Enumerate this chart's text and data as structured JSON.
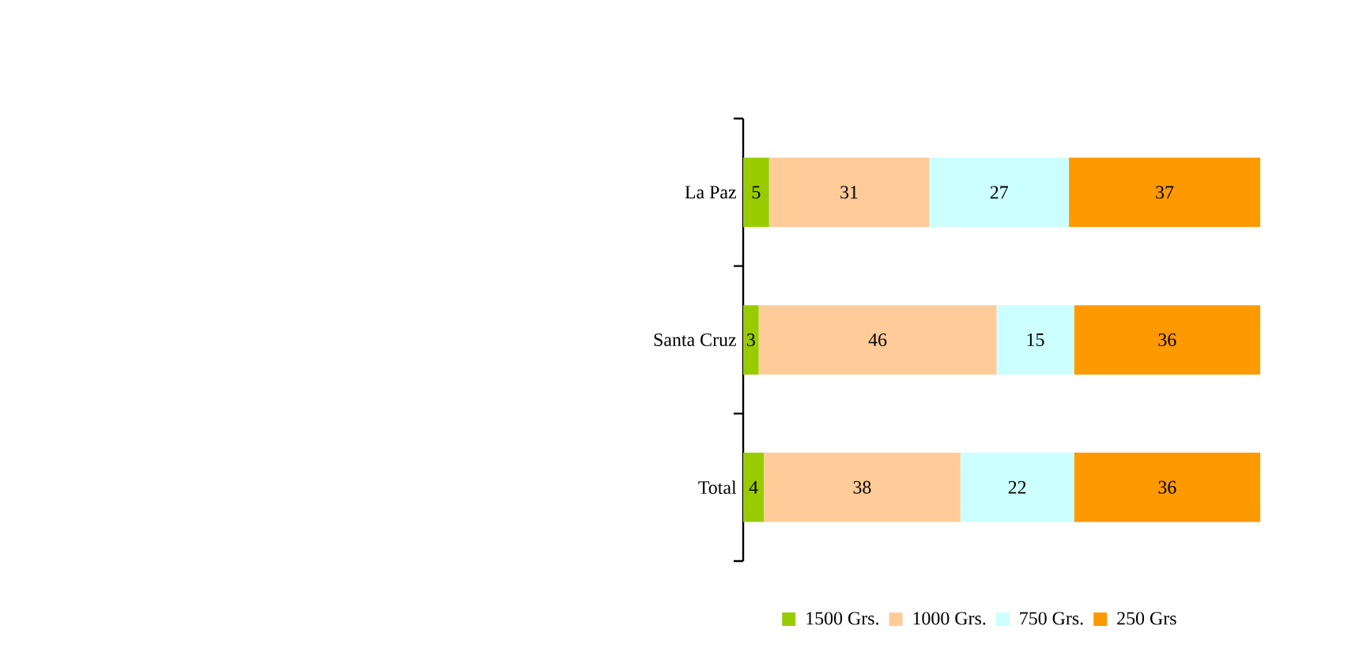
{
  "chart_data": {
    "type": "bar",
    "orientation": "horizontal",
    "stacked": true,
    "data_labels": true,
    "legend": "bottom",
    "tick_labels": "y",
    "categories": [
      "La Paz",
      "Santa Cruz",
      "Total"
    ],
    "series": [
      {
        "name": "1500 Grs.",
        "color": "#99cc00",
        "values": [
          5,
          3,
          4
        ]
      },
      {
        "name": "1000 Grs.",
        "color": "#ffcc99",
        "values": [
          31,
          46,
          38
        ]
      },
      {
        "name": "750 Grs.",
        "color": "#ccffff",
        "values": [
          27,
          15,
          22
        ]
      },
      {
        "name": "250 Grs",
        "color": "#ff9900",
        "values": [
          37,
          36,
          36
        ]
      }
    ]
  }
}
